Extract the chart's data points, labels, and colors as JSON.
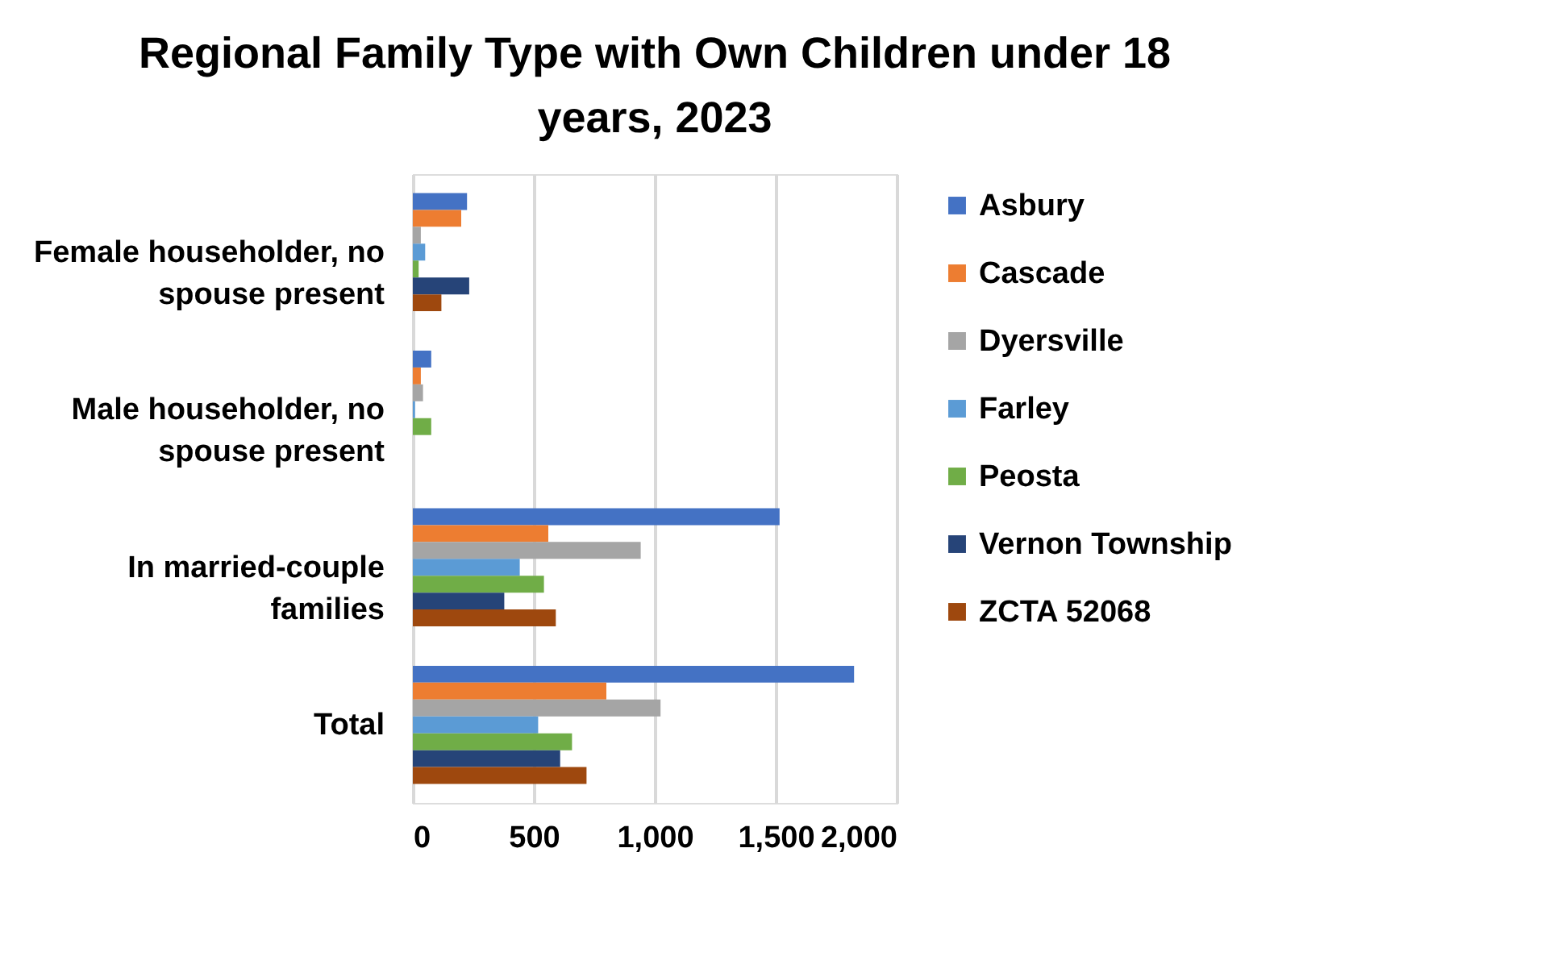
{
  "chart_data": {
    "type": "bar",
    "orientation": "horizontal",
    "title": "Regional Family Type with Own Children under 18 years, 2023",
    "categories": [
      "Female householder, no spouse present",
      "Male householder, no spouse present",
      "In married-couple families",
      "Total"
    ],
    "series": [
      {
        "name": "Asbury",
        "color": "#4472c4",
        "values": [
          224,
          76,
          1516,
          1824
        ]
      },
      {
        "name": "Cascade",
        "color": "#ed7d31",
        "values": [
          200,
          33,
          560,
          800
        ]
      },
      {
        "name": "Dyersville",
        "color": "#a5a5a5",
        "values": [
          33,
          42,
          942,
          1024
        ]
      },
      {
        "name": "Farley",
        "color": "#5b9bd5",
        "values": [
          51,
          9,
          442,
          518
        ]
      },
      {
        "name": "Peosta",
        "color": "#70ad47",
        "values": [
          24,
          76,
          542,
          658
        ]
      },
      {
        "name": "Vernon Township",
        "color": "#264478",
        "values": [
          233,
          0,
          378,
          609
        ]
      },
      {
        "name": "ZCTA 52068",
        "color": "#9e480e",
        "values": [
          118,
          0,
          591,
          718
        ]
      }
    ],
    "xlim": [
      0,
      2000
    ],
    "xticks": [
      0,
      {
        "value": 500,
        "label": "500"
      },
      {
        "value": 1000,
        "label": "1,000"
      },
      {
        "value": 1500,
        "label": "1,500"
      },
      {
        "value": 2000,
        "label": "2,000"
      }
    ],
    "grid": "x",
    "legend": "right"
  }
}
